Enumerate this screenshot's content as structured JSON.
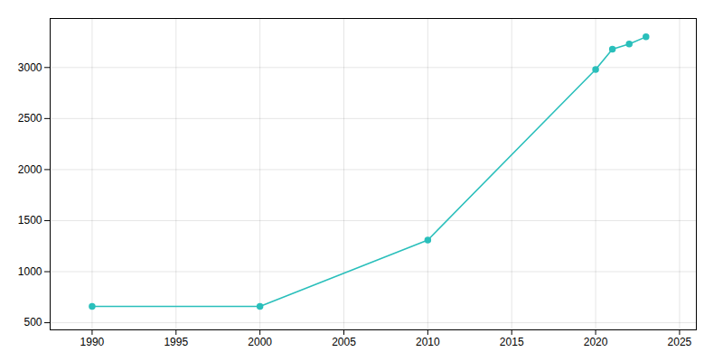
{
  "chart_data": {
    "type": "line",
    "x": [
      1990,
      2000,
      2010,
      2020,
      2021,
      2022,
      2023
    ],
    "values": [
      660,
      660,
      1310,
      2980,
      3180,
      3230,
      3300
    ],
    "color": "#2abfbb",
    "marker": "circle",
    "xlim": [
      1987.5,
      2026
    ],
    "ylim": [
      430,
      3480
    ],
    "xticks": [
      1990,
      1995,
      2000,
      2005,
      2010,
      2015,
      2020,
      2025
    ],
    "yticks": [
      500,
      1000,
      1500,
      2000,
      2500,
      3000
    ],
    "grid": true
  }
}
